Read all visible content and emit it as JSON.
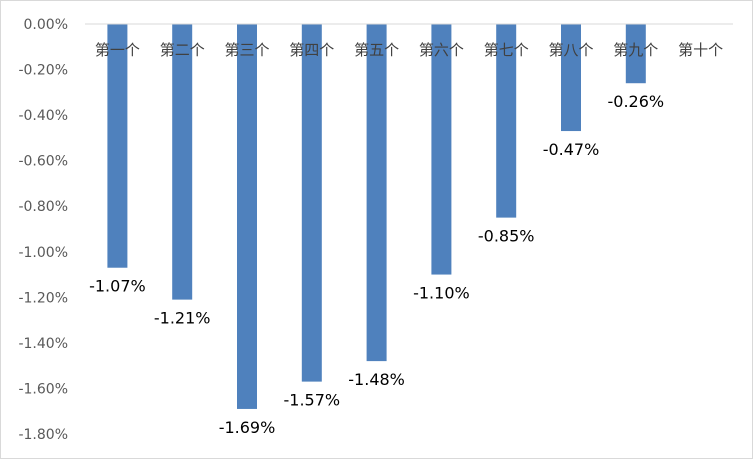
{
  "chart_data": {
    "type": "bar",
    "categories": [
      "第一个",
      "第二个",
      "第三个",
      "第四个",
      "第五个",
      "第六个",
      "第七个",
      "第八个",
      "第九个",
      "第十个"
    ],
    "values": [
      -1.07,
      -1.21,
      -1.69,
      -1.57,
      -1.48,
      -1.1,
      -0.85,
      -0.47,
      -0.26,
      null
    ],
    "data_labels": [
      "-1.07%",
      "-1.21%",
      "-1.69%",
      "-1.57%",
      "-1.48%",
      "-1.10%",
      "-0.85%",
      "-0.47%",
      "-0.26%",
      ""
    ],
    "y_ticks": [
      "0.00%",
      "-0.20%",
      "-0.40%",
      "-0.60%",
      "-0.80%",
      "-1.00%",
      "-1.20%",
      "-1.40%",
      "-1.60%",
      "-1.80%"
    ],
    "ylim": [
      -1.8,
      0
    ],
    "unit": "%",
    "bar_color": "#4f81bd",
    "grid": false,
    "legend": "none",
    "title": "",
    "xlabel": "",
    "ylabel": ""
  }
}
